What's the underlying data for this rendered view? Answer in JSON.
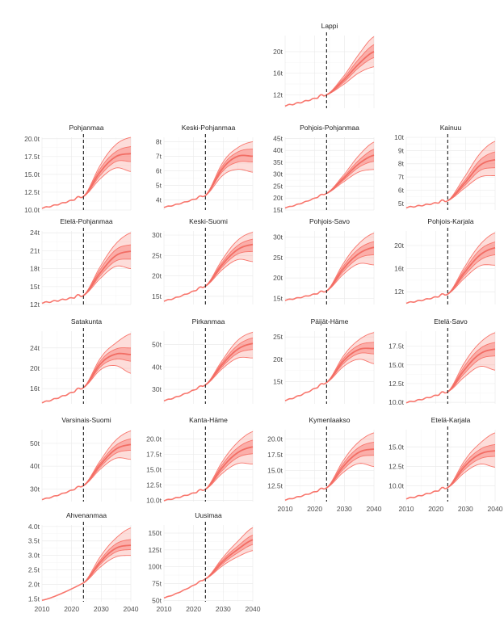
{
  "chart_data": {
    "type": "line",
    "layout": "faceted 4-column grid",
    "forecast_start_year": 2024,
    "x_range": [
      2010,
      2040
    ],
    "x_ticks": [
      2010,
      2020,
      2030,
      2040
    ],
    "series_color": "#f8766d",
    "facets": [
      {
        "name": "Lappi",
        "y_range": [
          9.5,
          23
        ],
        "y_ticks": [
          12,
          16,
          20
        ],
        "y_tick_labels": [
          "12t",
          "16t",
          "20t"
        ],
        "start": 10.0,
        "hist_end": 12.0,
        "hist_dip": 0.3,
        "median": [
          12.0,
          14.8,
          17.8,
          20.0
        ],
        "p25": [
          12.0,
          14.4,
          17.1,
          18.9
        ],
        "p75": [
          12.0,
          15.2,
          18.7,
          21.3
        ],
        "p10": [
          12.0,
          14.0,
          16.1,
          17.2
        ],
        "p90": [
          12.0,
          15.6,
          19.6,
          22.8
        ],
        "show_x_labels": false
      },
      {
        "name": "Pohjanmaa",
        "y_range": [
          10,
          20.2
        ],
        "y_ticks": [
          10,
          12.5,
          15,
          17.5,
          20
        ],
        "y_tick_labels": [
          "10.0t",
          "12.5t",
          "15.0t",
          "17.5t",
          "20.0t"
        ],
        "start": 10.3,
        "hist_end": 11.9,
        "hist_dip": 0.2,
        "median": [
          11.9,
          15.5,
          17.5,
          17.9
        ],
        "p25": [
          11.9,
          15.0,
          16.8,
          16.8
        ],
        "p75": [
          11.9,
          16.0,
          18.2,
          18.9
        ],
        "p10": [
          11.9,
          14.5,
          15.9,
          15.4
        ],
        "p90": [
          11.9,
          16.5,
          19.2,
          20.2
        ],
        "show_x_labels": false
      },
      {
        "name": "Keski-Pohjanmaa",
        "y_range": [
          3.3,
          8.3
        ],
        "y_ticks": [
          4,
          5,
          6,
          7,
          8
        ],
        "y_tick_labels": [
          "4t",
          "5t",
          "6t",
          "7t",
          "8t"
        ],
        "start": 3.5,
        "hist_end": 4.3,
        "hist_dip": 0.08,
        "median": [
          4.3,
          6.2,
          7.0,
          7.0
        ],
        "p25": [
          4.3,
          6.0,
          6.6,
          6.6
        ],
        "p75": [
          4.3,
          6.4,
          7.3,
          7.5
        ],
        "p10": [
          4.3,
          5.7,
          6.1,
          5.9
        ],
        "p90": [
          4.3,
          6.6,
          7.6,
          8.0
        ],
        "show_x_labels": false
      },
      {
        "name": "Pohjois-Pohjanmaa",
        "y_range": [
          15,
          45.5
        ],
        "y_ticks": [
          15,
          20,
          25,
          30,
          35,
          40,
          45
        ],
        "y_tick_labels": [
          "15t",
          "20t",
          "25t",
          "30t",
          "35t",
          "40t",
          "45t"
        ],
        "start": 16.0,
        "hist_end": 22.0,
        "hist_dip": 0.4,
        "median": [
          22.0,
          28.5,
          34.5,
          38.0
        ],
        "p25": [
          22.0,
          27.8,
          33.0,
          35.5
        ],
        "p75": [
          22.0,
          29.2,
          36.0,
          40.5
        ],
        "p10": [
          22.0,
          27.0,
          31.0,
          32.0
        ],
        "p90": [
          22.0,
          30.0,
          38.0,
          43.5
        ],
        "show_x_labels": false
      },
      {
        "name": "Kainuu",
        "y_range": [
          4.5,
          10
        ],
        "y_ticks": [
          5,
          6,
          7,
          8,
          9,
          10
        ],
        "y_tick_labels": [
          "5t",
          "6t",
          "7t",
          "8t",
          "9t",
          "10t"
        ],
        "start": 4.7,
        "hist_end": 5.2,
        "hist_dip": 0.12,
        "median": [
          5.2,
          6.6,
          7.9,
          8.3
        ],
        "p25": [
          5.2,
          6.4,
          7.5,
          7.7
        ],
        "p75": [
          5.2,
          6.8,
          8.3,
          8.9
        ],
        "p10": [
          5.2,
          6.2,
          7.0,
          7.1
        ],
        "p90": [
          5.2,
          7.1,
          8.8,
          9.7
        ],
        "show_x_labels": false
      },
      {
        "name": "Etelä-Pohjanmaa",
        "y_range": [
          12,
          24.3
        ],
        "y_ticks": [
          12,
          15,
          18,
          21,
          24
        ],
        "y_tick_labels": [
          "12t",
          "15t",
          "18t",
          "21t",
          "24t"
        ],
        "start": 12.3,
        "hist_end": 13.5,
        "hist_dip": 0.3,
        "median": [
          13.5,
          17.5,
          20.2,
          20.9
        ],
        "p25": [
          13.5,
          17.0,
          19.3,
          19.6
        ],
        "p75": [
          13.5,
          18.1,
          21.2,
          22.0
        ],
        "p10": [
          13.5,
          16.5,
          18.4,
          18.0
        ],
        "p90": [
          13.5,
          18.6,
          22.2,
          24.0
        ],
        "show_x_labels": false
      },
      {
        "name": "Keski-Suomi",
        "y_range": [
          13,
          31
        ],
        "y_ticks": [
          15,
          20,
          25,
          30
        ],
        "y_tick_labels": [
          "15t",
          "20t",
          "25t",
          "30t"
        ],
        "start": 13.9,
        "hist_end": 17.5,
        "hist_dip": 0.3,
        "median": [
          17.5,
          23.0,
          26.5,
          27.7
        ],
        "p25": [
          17.5,
          22.4,
          25.4,
          26.0
        ],
        "p75": [
          17.5,
          23.6,
          27.5,
          29.0
        ],
        "p10": [
          17.5,
          21.7,
          24.0,
          23.5
        ],
        "p90": [
          17.5,
          24.3,
          28.8,
          30.7
        ],
        "show_x_labels": false
      },
      {
        "name": "Pohjois-Savo",
        "y_range": [
          13.5,
          31.5
        ],
        "y_ticks": [
          15,
          20,
          25,
          30
        ],
        "y_tick_labels": [
          "15t",
          "20t",
          "25t",
          "30t"
        ],
        "start": 14.6,
        "hist_end": 16.8,
        "hist_dip": 0.3,
        "median": [
          16.8,
          22.5,
          26.0,
          27.5
        ],
        "p25": [
          16.8,
          21.8,
          24.9,
          25.7
        ],
        "p75": [
          16.8,
          23.2,
          27.2,
          28.9
        ],
        "p10": [
          16.8,
          21.1,
          23.5,
          23.2
        ],
        "p90": [
          16.8,
          23.9,
          28.5,
          31.0
        ],
        "show_x_labels": false
      },
      {
        "name": "Pohjois-Karjala",
        "y_range": [
          9.8,
          22.5
        ],
        "y_ticks": [
          12,
          16,
          20
        ],
        "y_tick_labels": [
          "12t",
          "16t",
          "20t"
        ],
        "start": 10.1,
        "hist_end": 11.6,
        "hist_dip": 0.25,
        "median": [
          11.6,
          15.5,
          18.4,
          19.6
        ],
        "p25": [
          11.6,
          15.0,
          17.5,
          18.4
        ],
        "p75": [
          11.6,
          16.0,
          19.3,
          20.6
        ],
        "p10": [
          11.6,
          14.5,
          16.5,
          16.6
        ],
        "p90": [
          11.6,
          16.5,
          20.2,
          22.2
        ],
        "show_x_labels": false
      },
      {
        "name": "Satakunta",
        "y_range": [
          13,
          27.3
        ],
        "y_ticks": [
          16,
          20,
          24
        ],
        "y_tick_labels": [
          "16t",
          "20t",
          "24t"
        ],
        "start": 13.3,
        "hist_end": 16.2,
        "hist_dip": 0.3,
        "median": [
          16.2,
          21.0,
          22.8,
          22.7
        ],
        "p25": [
          16.2,
          20.4,
          21.8,
          21.4
        ],
        "p75": [
          16.2,
          21.6,
          23.8,
          24.0
        ],
        "p10": [
          16.2,
          19.8,
          20.5,
          19.0
        ],
        "p90": [
          16.2,
          22.2,
          25.0,
          26.8
        ],
        "show_x_labels": false
      },
      {
        "name": "Pirkanmaa",
        "y_range": [
          23.5,
          56
        ],
        "y_ticks": [
          30,
          40,
          50
        ],
        "y_tick_labels": [
          "30t",
          "40t",
          "50t"
        ],
        "start": 25.0,
        "hist_end": 32.0,
        "hist_dip": 0.5,
        "median": [
          32.0,
          41.5,
          48.0,
          50.5
        ],
        "p25": [
          32.0,
          40.5,
          46.2,
          47.8
        ],
        "p75": [
          32.0,
          42.5,
          49.8,
          53.0
        ],
        "p10": [
          32.0,
          39.5,
          44.0,
          44.0
        ],
        "p90": [
          32.0,
          43.5,
          52.0,
          55.5
        ],
        "show_x_labels": false
      },
      {
        "name": "Päijät-Häme",
        "y_range": [
          10,
          26.3
        ],
        "y_ticks": [
          15,
          20,
          25
        ],
        "y_tick_labels": [
          "15t",
          "20t",
          "25t"
        ],
        "start": 10.8,
        "hist_end": 14.8,
        "hist_dip": 0.3,
        "median": [
          14.8,
          19.8,
          22.2,
          22.4
        ],
        "p25": [
          14.8,
          19.2,
          21.3,
          21.2
        ],
        "p75": [
          14.8,
          20.4,
          23.2,
          23.8
        ],
        "p10": [
          14.8,
          18.5,
          20.0,
          19.0
        ],
        "p90": [
          14.8,
          21.0,
          24.4,
          26.0
        ],
        "show_x_labels": false
      },
      {
        "name": "Etelä-Savo",
        "y_range": [
          9.8,
          19.5
        ],
        "y_ticks": [
          10,
          12.5,
          15,
          17.5
        ],
        "y_tick_labels": [
          "10.0t",
          "12.5t",
          "15.0t",
          "17.5t"
        ],
        "start": 10.0,
        "hist_end": 11.4,
        "hist_dip": 0.2,
        "median": [
          11.4,
          14.5,
          16.5,
          17.1
        ],
        "p25": [
          11.4,
          14.0,
          15.8,
          16.2
        ],
        "p75": [
          11.4,
          15.0,
          17.2,
          18.0
        ],
        "p10": [
          11.4,
          13.5,
          14.8,
          14.3
        ],
        "p90": [
          11.4,
          15.5,
          18.0,
          19.3
        ],
        "show_x_labels": false
      },
      {
        "name": "Varsinais-Suomi",
        "y_range": [
          24.5,
          56
        ],
        "y_ticks": [
          30,
          40,
          50
        ],
        "y_tick_labels": [
          "30t",
          "40t",
          "50t"
        ],
        "start": 25.5,
        "hist_end": 31.5,
        "hist_dip": 0.5,
        "median": [
          31.5,
          41.0,
          47.5,
          49.5
        ],
        "p25": [
          31.5,
          40.0,
          45.7,
          47.0
        ],
        "p75": [
          31.5,
          42.0,
          49.2,
          52.0
        ],
        "p10": [
          31.5,
          39.0,
          43.5,
          43.0
        ],
        "p90": [
          31.5,
          43.0,
          51.5,
          55.5
        ],
        "show_x_labels": false
      },
      {
        "name": "Kanta-Häme",
        "y_range": [
          9.8,
          21.5
        ],
        "y_ticks": [
          10,
          12.5,
          15,
          17.5,
          20
        ],
        "y_tick_labels": [
          "10.0t",
          "12.5t",
          "15.0t",
          "17.5t",
          "20.0t"
        ],
        "start": 10.0,
        "hist_end": 11.8,
        "hist_dip": 0.2,
        "median": [
          11.8,
          15.5,
          17.8,
          18.7
        ],
        "p25": [
          11.8,
          15.0,
          17.0,
          17.6
        ],
        "p75": [
          11.8,
          16.0,
          18.6,
          19.8
        ],
        "p10": [
          11.8,
          14.5,
          16.0,
          15.9
        ],
        "p90": [
          11.8,
          16.5,
          19.5,
          21.2
        ],
        "show_x_labels": false
      },
      {
        "name": "Kymenlaakso",
        "y_range": [
          10,
          21.5
        ],
        "y_ticks": [
          12.5,
          15,
          17.5,
          20
        ],
        "y_tick_labels": [
          "12.5t",
          "15.0t",
          "17.5t",
          "20.0t"
        ],
        "start": 10.3,
        "hist_end": 12.2,
        "hist_dip": 0.2,
        "median": [
          12.2,
          15.8,
          17.9,
          18.4
        ],
        "p25": [
          12.2,
          15.3,
          17.1,
          17.4
        ],
        "p75": [
          12.2,
          16.3,
          18.7,
          19.5
        ],
        "p10": [
          12.2,
          14.8,
          16.1,
          15.6
        ],
        "p90": [
          12.2,
          16.8,
          19.6,
          21.0
        ],
        "show_x_labels": true
      },
      {
        "name": "Etelä-Karjala",
        "y_range": [
          8,
          17.2
        ],
        "y_ticks": [
          10,
          12.5,
          15
        ],
        "y_tick_labels": [
          "10.0t",
          "12.5t",
          "15.0t"
        ],
        "start": 8.4,
        "hist_end": 9.8,
        "hist_dip": 0.2,
        "median": [
          9.8,
          12.6,
          14.1,
          14.5
        ],
        "p25": [
          9.8,
          12.2,
          13.5,
          13.8
        ],
        "p75": [
          9.8,
          13.0,
          14.7,
          15.3
        ],
        "p10": [
          9.8,
          11.8,
          12.8,
          12.4
        ],
        "p90": [
          9.8,
          13.4,
          15.5,
          16.8
        ],
        "show_x_labels": true
      },
      {
        "name": "Ahvenanmaa",
        "y_range": [
          1.4,
          4.05
        ],
        "y_ticks": [
          1.5,
          2.0,
          2.5,
          3.0,
          3.5,
          4.0
        ],
        "y_tick_labels": [
          "1.5t",
          "2.0t",
          "2.5t",
          "3.0t",
          "3.5t",
          "4.0t"
        ],
        "start": 1.45,
        "hist_end": 2.05,
        "hist_dip": 0.0,
        "median": [
          2.05,
          2.8,
          3.25,
          3.35
        ],
        "p25": [
          2.05,
          2.72,
          3.12,
          3.2
        ],
        "p75": [
          2.05,
          2.88,
          3.4,
          3.55
        ],
        "p10": [
          2.05,
          2.62,
          2.95,
          3.0
        ],
        "p90": [
          2.05,
          3.0,
          3.6,
          3.95
        ],
        "show_x_labels": true
      },
      {
        "name": "Uusimaa",
        "y_range": [
          48,
          162
        ],
        "y_ticks": [
          50,
          75,
          100,
          125,
          150
        ],
        "y_tick_labels": [
          "50t",
          "75t",
          "100t",
          "125t",
          "150t"
        ],
        "start": 54,
        "hist_end": 82,
        "hist_dip": 1.0,
        "median": [
          82,
          108,
          126,
          140
        ],
        "p25": [
          82,
          105,
          121,
          133
        ],
        "p75": [
          82,
          111,
          131,
          147
        ],
        "p10": [
          82,
          102,
          115,
          124
        ],
        "p90": [
          82,
          114,
          138,
          158
        ],
        "show_x_labels": true
      }
    ]
  }
}
